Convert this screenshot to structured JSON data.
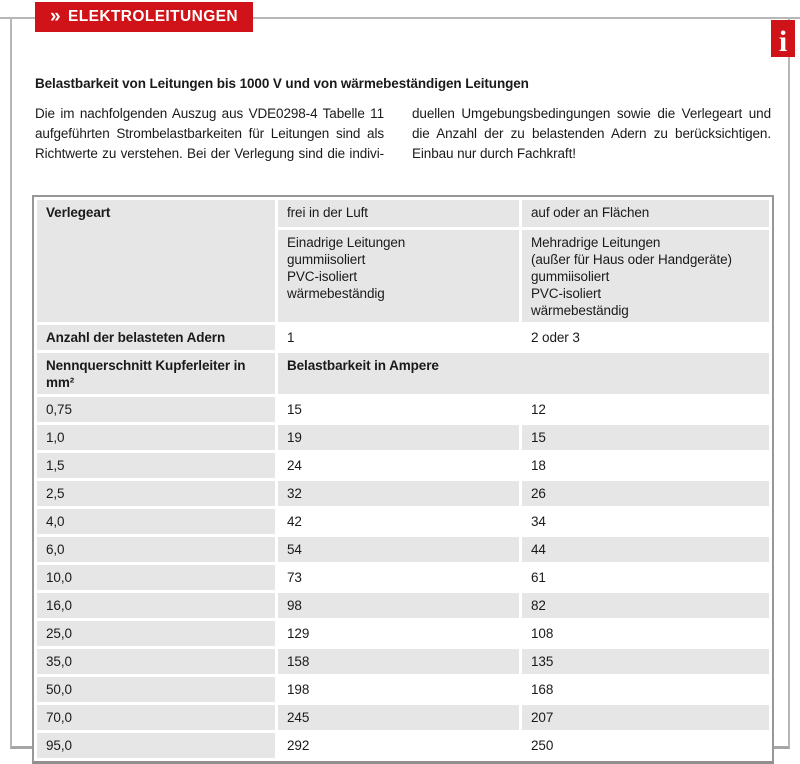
{
  "header": {
    "chevron": "»",
    "title": "ELEKTROLEITUNGEN",
    "info_icon": "i"
  },
  "colors": {
    "accent_red": "#d01318",
    "cell_gray": "#e6e6e6",
    "table_border": "#979797",
    "box_border": "#b7b7b7",
    "text": "#1a1a1a"
  },
  "intro": {
    "heading": "Belastbarkeit von Leitungen bis 1000 V und von wärmebeständigen Leitungen",
    "left_lines": [
      "Die im nachfolgenden Auszug aus VDE0298-4 Tabelle 11",
      "aufgeführten Strombelastbarkeiten für Leitungen sind als",
      "Richtwerte zu verstehen. Bei der Verlegung sind die indivi-"
    ],
    "right_lines": [
      "duellen Umgebungsbedingungen sowie die Verlegeart und",
      "die Anzahl der zu belastenden Adern zu berücksichtigen.",
      "Einbau nur durch Fachkraft!"
    ]
  },
  "table": {
    "verlegeart_label": "Verlegeart",
    "col_frei_header": "frei in der Luft",
    "col_flaechen_header": "auf oder an Flächen",
    "sub_frei": [
      "Einadrige Leitungen",
      "gummiisoliert",
      "PVC-isoliert",
      "wärmebeständig"
    ],
    "sub_flaechen": [
      "Mehradrige Leitungen",
      "(außer für Haus oder Handgeräte)",
      "gummiisoliert",
      "PVC-isoliert",
      "wärmebeständig"
    ],
    "adern_label": "Anzahl der belasteten Adern",
    "adern_frei": "1",
    "adern_flaechen": "2 oder 3",
    "querschnitt_label": "Nennquerschnitt Kupferleiter in mm²",
    "ampere_label": "Belastbarkeit in Ampere",
    "rows": [
      [
        "0,75",
        "15",
        "12"
      ],
      [
        "1,0",
        "19",
        "15"
      ],
      [
        "1,5",
        "24",
        "18"
      ],
      [
        "2,5",
        "32",
        "26"
      ],
      [
        "4,0",
        "42",
        "34"
      ],
      [
        "6,0",
        "54",
        "44"
      ],
      [
        "10,0",
        "73",
        "61"
      ],
      [
        "16,0",
        "98",
        "82"
      ],
      [
        "25,0",
        "129",
        "108"
      ],
      [
        "35,0",
        "158",
        "135"
      ],
      [
        "50,0",
        "198",
        "168"
      ],
      [
        "70,0",
        "245",
        "207"
      ],
      [
        "95,0",
        "292",
        "250"
      ]
    ]
  }
}
